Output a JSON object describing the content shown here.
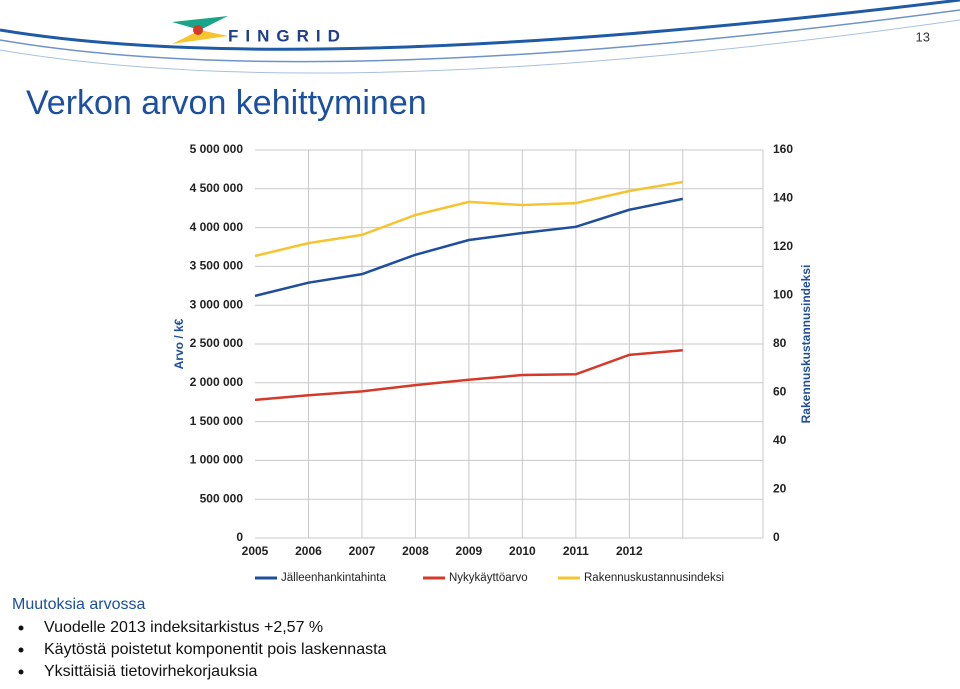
{
  "slide": {
    "logo": "FINGRID",
    "page_number": "13",
    "title": "Verkon arvon kehittyminen",
    "subheading": "Muutoksia arvossa",
    "bullets": [
      "Vuodelle 2013 indeksitarkistus +2,57 %",
      "Käytöstä poistetut komponentit pois laskennasta",
      "Yksittäisiä tietovirhekorjauksia"
    ]
  },
  "chart_data": {
    "type": "line",
    "ylabel": "Arvo / k€",
    "y2label": "Rakennuskustannusindeksi",
    "categories": [
      "2005",
      "2006",
      "2007",
      "2008",
      "2009",
      "2010",
      "2011",
      "2012",
      null
    ],
    "series": [
      {
        "name": "Jälleenhankintahinta",
        "color": "#1f4e9c",
        "values": [
          3120000,
          3290000,
          3400000,
          3650000,
          3840000,
          3930000,
          4010000,
          4230000,
          4370000
        ]
      },
      {
        "name": "Nykykäyttöarvo",
        "color": "#d43a2a",
        "values": [
          1780000,
          1840000,
          1890000,
          1970000,
          2040000,
          2100000,
          2110000,
          2360000,
          2420000
        ]
      },
      {
        "name": "Rakennuskustannusindeksi",
        "color": "#f5c431",
        "axis": "y2",
        "values": [
          116.3,
          121.6,
          125,
          133.2,
          138.6,
          137.3,
          138.1,
          143.1,
          146.8
        ]
      }
    ],
    "ylim": [
      0,
      5000000
    ],
    "yticks": [
      0,
      {
        "value": 500000,
        "label": "500 000"
      },
      {
        "value": 1000000,
        "label": "1 000 000"
      },
      {
        "value": 1500000,
        "label": "1 500 000"
      },
      {
        "value": 2000000,
        "label": "2 000 000"
      },
      {
        "value": 2500000,
        "label": "2 500 000"
      },
      {
        "value": 3000000,
        "label": "3 000 000"
      },
      {
        "value": 3500000,
        "label": "3 500 000"
      },
      {
        "value": 4000000,
        "label": "4 000 000"
      },
      {
        "value": 4500000,
        "label": "4 500 000"
      },
      {
        "value": 5000000,
        "label": "5 000 000"
      }
    ],
    "y2lim": [
      0,
      160
    ],
    "y2ticks": [
      0,
      20,
      40,
      60,
      80,
      100,
      120,
      140,
      160
    ],
    "grid": true,
    "legend": "bottom"
  }
}
